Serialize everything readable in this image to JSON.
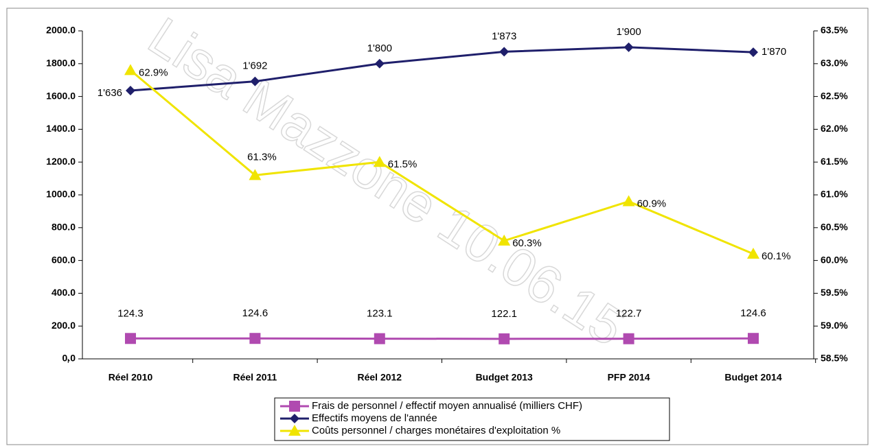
{
  "chart_data": {
    "type": "line",
    "watermark": "Lisa Mazzone 10.06.15",
    "categories": [
      "Réel 2010",
      "Réel 2011",
      "Réel 2012",
      "Budget 2013",
      "PFP 2014",
      "Budget 2014"
    ],
    "series": [
      {
        "name": "Frais de personnel / effectif moyen annualisé (milliers CHF)",
        "color": "#b04ab0",
        "marker": "square",
        "values": [
          124.3,
          124.6,
          123.1,
          122.1,
          122.7,
          124.6
        ]
      },
      {
        "name": "Effectifs moyens de l'année",
        "color": "#1f1f6b",
        "marker": "diamond",
        "values": [
          1636,
          1692,
          1800,
          1873,
          1900,
          1870
        ],
        "value_labels": [
          "1'636",
          "1'692",
          "1'800",
          "1'873",
          "1'900",
          "1'870"
        ]
      },
      {
        "name": "Coûts personnel / charges monétaires d'exploitation %",
        "color": "#f0e400",
        "marker": "triangle",
        "axis": "y2",
        "values": [
          62.9,
          61.3,
          61.5,
          60.3,
          60.9,
          60.1
        ],
        "value_labels": [
          "62.9%",
          "61.3%",
          "61.5%",
          "60.3%",
          "60.9%",
          "60.1%"
        ]
      }
    ],
    "ylim": [
      0,
      2000
    ],
    "yticks": [
      {
        "value": 0,
        "label": "0.0"
      },
      {
        "value": 200,
        "label": "200.0"
      },
      {
        "value": 400,
        "label": "400.0"
      },
      {
        "value": 600,
        "label": "600.0"
      },
      {
        "value": 800,
        "label": "800.0"
      },
      {
        "value": 1000,
        "label": "1000.0"
      },
      {
        "value": 1200,
        "label": "1200.0"
      },
      {
        "value": 1400,
        "label": "1400.0"
      },
      {
        "value": 1600,
        "label": "1600.0"
      },
      {
        "value": 1800,
        "label": "1800.0"
      },
      {
        "value": 2000,
        "label": "2000.0"
      }
    ],
    "y2lim": [
      58.5,
      63.5
    ],
    "y2ticks": [
      {
        "value": 58.5,
        "label": "58.5%"
      },
      {
        "value": 59,
        "label": "59.0%"
      },
      {
        "value": 59.5,
        "label": "59.5%"
      },
      {
        "value": 60,
        "label": "60.0%"
      },
      {
        "value": 60.5,
        "label": "60.5%"
      },
      {
        "value": 61,
        "label": "61.0%"
      },
      {
        "value": 61.5,
        "label": "61.5%"
      },
      {
        "value": 62,
        "label": "62.0%"
      },
      {
        "value": 62.5,
        "label": "62.5%"
      },
      {
        "value": 63,
        "label": "63.0%"
      },
      {
        "value": 63.5,
        "label": "63.5%"
      }
    ],
    "legend": "bottom"
  }
}
